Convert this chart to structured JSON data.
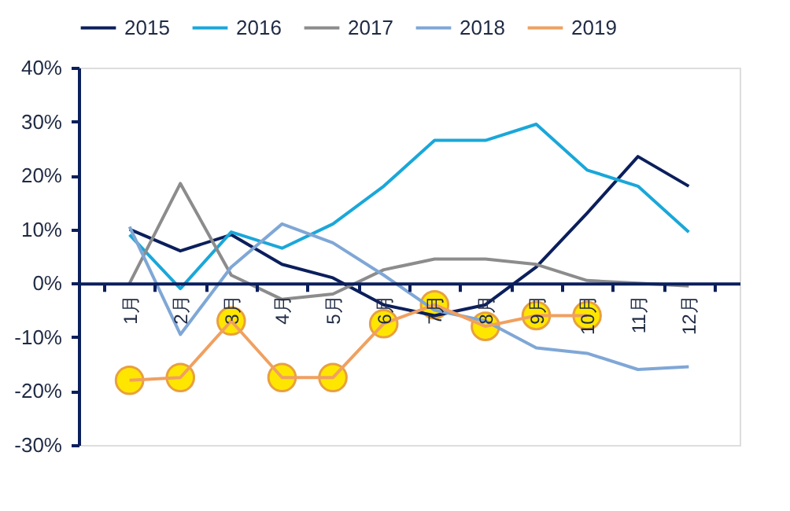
{
  "chart_data": {
    "type": "line",
    "categories": [
      "1月",
      "2月",
      "3月",
      "4月",
      "5月",
      "6月",
      "7月",
      "8月",
      "9月",
      "10月",
      "11月",
      "12月"
    ],
    "series": [
      {
        "name": "2015",
        "color": "#0b1f5c",
        "marker": "none",
        "values": [
          10,
          6,
          9,
          3.5,
          1,
          -4,
          -6,
          -4,
          3,
          13,
          23.5,
          18
        ]
      },
      {
        "name": "2016",
        "color": "#1aa7d9",
        "marker": "none",
        "values": [
          9,
          -1,
          9.5,
          6.5,
          11,
          18,
          26.5,
          26.5,
          29.5,
          21,
          18,
          9.5
        ]
      },
      {
        "name": "2017",
        "color": "#8c8c8c",
        "marker": "none",
        "values": [
          0,
          18.5,
          1.5,
          -3,
          -2,
          2.5,
          4.5,
          4.5,
          3.5,
          0.5,
          0,
          -0.5
        ]
      },
      {
        "name": "2018",
        "color": "#7fa7d6",
        "marker": "none",
        "values": [
          10.5,
          -9.5,
          3,
          11,
          7.5,
          1.5,
          -5,
          -7,
          -12,
          -13,
          -16,
          -15.5
        ]
      },
      {
        "name": "2019",
        "color": "#f0a060",
        "marker": "circle",
        "values": [
          -18,
          -17.5,
          -7,
          -17.5,
          -17.5,
          -7.5,
          -4,
          -8,
          -6,
          -6,
          null,
          null
        ]
      }
    ],
    "ylim": [
      -30,
      40
    ],
    "yticks": [
      {
        "value": -30,
        "label": "-30%"
      },
      {
        "value": -20,
        "label": "-20%"
      },
      {
        "value": -10,
        "label": "-10%"
      },
      {
        "value": 0,
        "label": "0%"
      },
      {
        "value": 10,
        "label": "10%"
      },
      {
        "value": 20,
        "label": "20%"
      },
      {
        "value": 30,
        "label": "30%"
      },
      {
        "value": 40,
        "label": "40%"
      }
    ],
    "grid": false,
    "legend": "top",
    "line_style": "solid"
  }
}
